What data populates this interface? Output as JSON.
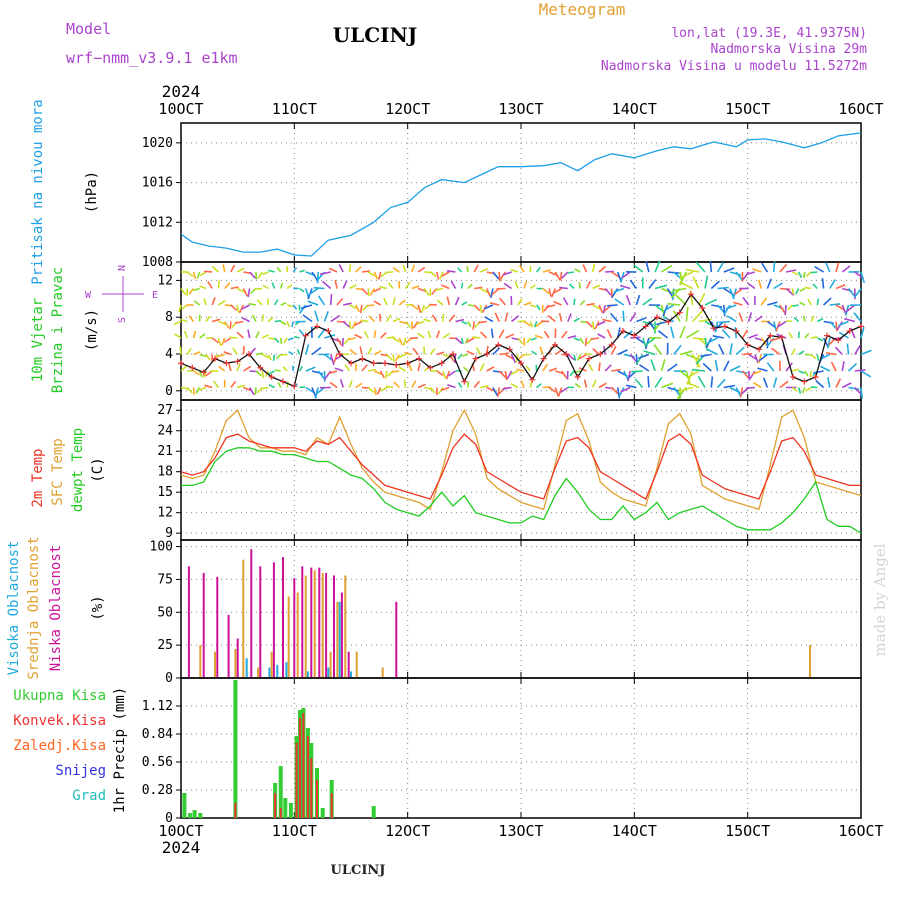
{
  "header": {
    "model_label": "Model",
    "model_name": "wrf−nmm_v3.9.1  e1km",
    "station": "ULCINJ",
    "meteogram": "Meteogram",
    "lonlat": "lon,lat (19.3E, 41.9375N)",
    "elevation": "Nadmorska Visina 29m",
    "model_elevation": "Nadmorska Visina u modelu 11.5272m",
    "year_top": "2024",
    "year_bottom": "2024",
    "footer_station": "ULCINJ",
    "watermark": "made by Angel"
  },
  "colors": {
    "pressure": "#1ea0e6",
    "wind_label": "#22cc22",
    "temp2m": "#ee3322",
    "sfc": "#e0a030",
    "dew": "#22cc22",
    "cloud_high": "#22aadd",
    "cloud_mid": "#e0a030",
    "cloud_low": "#cc1199",
    "rain_total": "#33cc33",
    "rain_conv": "#ee3333",
    "snow": "#3333dd",
    "frozen": "#ff6622",
    "hail": "#22bbbb",
    "compass": "#aa44cc"
  },
  "chart_data": [
    {
      "type": "line",
      "panel": "pressure",
      "ylabel_1": "Pritisak na nivou mora",
      "ylabel_2": "(hPa)",
      "x_ticks": [
        "10OCT",
        "11OCT",
        "12OCT",
        "13OCT",
        "14OCT",
        "15OCT",
        "16OCT"
      ],
      "xlim": [
        0,
        6
      ],
      "ylim": [
        1008,
        1022
      ],
      "y_ticks": [
        1008,
        1012,
        1016,
        1020
      ],
      "grid": true,
      "series": [
        {
          "x": [
            0,
            0.1,
            0.25,
            0.4,
            0.55,
            0.7,
            0.85,
            1.0,
            1.15,
            1.3,
            1.5,
            1.7,
            1.85,
            2.0,
            2.15,
            2.3,
            2.5,
            2.65,
            2.8,
            3.0,
            3.2,
            3.35,
            3.5,
            3.65,
            3.8,
            4.0,
            4.2,
            4.35,
            4.5,
            4.7,
            4.9,
            5.0,
            5.15,
            5.3,
            5.5,
            5.65,
            5.8,
            6.0
          ],
          "y": [
            1010.8,
            1010.0,
            1009.6,
            1009.4,
            1009.0,
            1009.0,
            1009.3,
            1008.7,
            1008.6,
            1010.2,
            1010.7,
            1012.0,
            1013.5,
            1014.0,
            1015.5,
            1016.3,
            1016.0,
            1016.8,
            1017.6,
            1017.6,
            1017.7,
            1018.0,
            1017.2,
            1018.3,
            1018.9,
            1018.5,
            1019.2,
            1019.6,
            1019.4,
            1020.1,
            1019.6,
            1020.3,
            1020.4,
            1020.1,
            1019.5,
            1020.0,
            1020.7,
            1021.0
          ]
        }
      ]
    },
    {
      "type": "scatter",
      "panel": "wind",
      "ylabel_1": "10m Vjetar",
      "ylabel_2": "Brzina i Pravac",
      "ylabel_3": "(m/s)",
      "compass": {
        "n": "N",
        "s": "S",
        "e": "E",
        "w": "W"
      },
      "xlim": [
        0,
        6
      ],
      "ylim": [
        -1,
        14
      ],
      "y_ticks": [
        0,
        4,
        8,
        12
      ],
      "grid": true,
      "series": [
        {
          "name": "speed",
          "x": [
            0,
            0.1,
            0.2,
            0.3,
            0.4,
            0.5,
            0.6,
            0.7,
            0.8,
            0.9,
            1.0,
            1.1,
            1.2,
            1.3,
            1.4,
            1.5,
            1.6,
            1.7,
            1.8,
            1.9,
            2.0,
            2.1,
            2.2,
            2.3,
            2.4,
            2.5,
            2.6,
            2.7,
            2.8,
            2.9,
            3.0,
            3.1,
            3.2,
            3.3,
            3.4,
            3.5,
            3.6,
            3.7,
            3.8,
            3.9,
            4.0,
            4.1,
            4.2,
            4.3,
            4.4,
            4.5,
            4.6,
            4.7,
            4.8,
            4.9,
            5.0,
            5.1,
            5.2,
            5.3,
            5.4,
            5.5,
            5.6,
            5.7,
            5.8,
            5.9,
            6.0
          ],
          "y": [
            3.0,
            2.5,
            2.0,
            3.5,
            3.0,
            3.2,
            4.0,
            2.5,
            1.5,
            1.0,
            0.5,
            6.0,
            7.0,
            6.5,
            4.0,
            3.0,
            3.5,
            3.0,
            3.0,
            2.8,
            3.0,
            3.5,
            2.5,
            3.0,
            4.0,
            1.0,
            3.5,
            4.0,
            5.0,
            4.5,
            3.0,
            1.2,
            3.5,
            5.0,
            4.0,
            1.5,
            3.5,
            4.0,
            5.0,
            6.5,
            6.0,
            7.0,
            8.0,
            7.5,
            8.5,
            10.5,
            9.0,
            6.8,
            7.0,
            6.5,
            5.0,
            4.5,
            6.0,
            5.8,
            1.5,
            1.0,
            1.5,
            6.0,
            5.5,
            6.5,
            7.0
          ]
        }
      ]
    },
    {
      "type": "line",
      "panel": "temperature",
      "ylabel_1": "2m Temp",
      "ylabel_2": "SFC Temp",
      "ylabel_3": "dewpt Temp",
      "ylabel_4": "(C)",
      "xlim": [
        0,
        6
      ],
      "ylim": [
        8,
        28.5
      ],
      "y_ticks": [
        9,
        12,
        15,
        18,
        21,
        24,
        27
      ],
      "grid": true,
      "series": [
        {
          "name": "2m Temp",
          "x": [
            0,
            0.1,
            0.2,
            0.3,
            0.4,
            0.5,
            0.6,
            0.7,
            0.8,
            0.9,
            1.0,
            1.1,
            1.2,
            1.3,
            1.4,
            1.5,
            1.6,
            1.7,
            1.8,
            1.9,
            2.0,
            2.1,
            2.2,
            2.3,
            2.4,
            2.5,
            2.6,
            2.7,
            2.8,
            2.9,
            3.0,
            3.1,
            3.2,
            3.3,
            3.4,
            3.5,
            3.6,
            3.7,
            3.8,
            3.9,
            4.0,
            4.1,
            4.2,
            4.3,
            4.4,
            4.5,
            4.6,
            4.7,
            4.8,
            4.9,
            5.0,
            5.1,
            5.2,
            5.3,
            5.4,
            5.5,
            5.6,
            5.7,
            5.8,
            5.9,
            6.0
          ],
          "y": [
            18.0,
            17.5,
            18.0,
            20.0,
            23.0,
            23.5,
            22.5,
            22.0,
            21.5,
            21.5,
            21.5,
            21.0,
            22.5,
            22.0,
            23.0,
            21.0,
            19.0,
            17.5,
            16.0,
            15.5,
            15.0,
            14.5,
            14.0,
            17.5,
            21.5,
            23.5,
            22.0,
            18.0,
            17.0,
            16.0,
            15.0,
            14.5,
            14.0,
            18.5,
            22.5,
            23.0,
            21.5,
            18.0,
            17.0,
            16.0,
            15.0,
            14.0,
            18.0,
            22.5,
            23.5,
            22.0,
            17.5,
            16.5,
            15.5,
            15.0,
            14.5,
            14.0,
            18.0,
            22.5,
            23.0,
            21.0,
            17.5,
            17.0,
            16.5,
            16.0,
            16.0
          ]
        },
        {
          "name": "SFC Temp",
          "x": [
            0,
            0.1,
            0.2,
            0.3,
            0.4,
            0.5,
            0.6,
            0.7,
            0.8,
            0.9,
            1.0,
            1.1,
            1.2,
            1.3,
            1.4,
            1.5,
            1.6,
            1.7,
            1.8,
            1.9,
            2.0,
            2.1,
            2.2,
            2.3,
            2.4,
            2.5,
            2.6,
            2.7,
            2.8,
            2.9,
            3.0,
            3.1,
            3.2,
            3.3,
            3.4,
            3.5,
            3.6,
            3.7,
            3.8,
            3.9,
            4.0,
            4.1,
            4.2,
            4.3,
            4.4,
            4.5,
            4.6,
            4.7,
            4.8,
            4.9,
            5.0,
            5.1,
            5.2,
            5.3,
            5.4,
            5.5,
            5.6,
            5.7,
            5.8,
            5.9,
            6.0
          ],
          "y": [
            17.5,
            17.0,
            17.5,
            21.0,
            25.5,
            27.0,
            23.0,
            21.5,
            21.5,
            21.0,
            21.0,
            20.5,
            23.0,
            22.0,
            26.0,
            22.0,
            18.5,
            16.5,
            15.0,
            14.5,
            14.0,
            13.5,
            12.5,
            18.0,
            24.0,
            27.0,
            23.5,
            17.0,
            15.5,
            14.5,
            13.5,
            13.0,
            12.5,
            19.0,
            25.5,
            26.5,
            22.5,
            16.5,
            15.0,
            14.0,
            13.5,
            13.0,
            18.5,
            25.0,
            26.5,
            23.5,
            16.0,
            15.0,
            14.0,
            13.5,
            13.0,
            12.5,
            19.0,
            26.0,
            27.0,
            23.0,
            16.5,
            16.0,
            15.5,
            15.0,
            14.5
          ]
        },
        {
          "name": "dewpt Temp",
          "x": [
            0,
            0.1,
            0.2,
            0.3,
            0.4,
            0.5,
            0.6,
            0.7,
            0.8,
            0.9,
            1.0,
            1.1,
            1.2,
            1.3,
            1.4,
            1.5,
            1.6,
            1.7,
            1.8,
            1.9,
            2.0,
            2.1,
            2.2,
            2.3,
            2.4,
            2.5,
            2.6,
            2.7,
            2.8,
            2.9,
            3.0,
            3.1,
            3.2,
            3.3,
            3.4,
            3.5,
            3.6,
            3.7,
            3.8,
            3.9,
            4.0,
            4.1,
            4.2,
            4.3,
            4.4,
            4.5,
            4.6,
            4.7,
            4.8,
            4.9,
            5.0,
            5.1,
            5.2,
            5.3,
            5.4,
            5.5,
            5.6,
            5.7,
            5.8,
            5.9,
            6.0
          ],
          "y": [
            16.0,
            16.0,
            16.5,
            19.5,
            21.0,
            21.5,
            21.5,
            21.0,
            21.0,
            20.5,
            20.5,
            20.0,
            19.5,
            19.5,
            18.5,
            17.5,
            17.0,
            15.5,
            13.5,
            12.5,
            12.0,
            11.5,
            13.0,
            15.0,
            13.0,
            14.5,
            12.0,
            11.5,
            11.0,
            10.5,
            10.5,
            11.5,
            11.0,
            14.5,
            17.0,
            15.0,
            12.5,
            11.0,
            11.0,
            13.0,
            11.0,
            12.0,
            13.5,
            11.0,
            12.0,
            12.5,
            13.0,
            12.0,
            11.0,
            10.0,
            9.5,
            9.5,
            9.5,
            10.5,
            12.0,
            14.0,
            16.5,
            11.0,
            10.0,
            10.0,
            9.0
          ]
        }
      ]
    },
    {
      "type": "bar",
      "panel": "clouds",
      "ylabel_1": "Visoka Oblacnost",
      "ylabel_2": "Srednja Oblacnost",
      "ylabel_3": "Niska Oblacnost",
      "ylabel_4": "(%)",
      "xlim": [
        0,
        6
      ],
      "ylim": [
        0,
        105
      ],
      "y_ticks": [
        0,
        25,
        50,
        75,
        100
      ],
      "grid": true,
      "series": [
        {
          "name": "Niska Oblacnost",
          "x": [
            0.07,
            0.2,
            0.32,
            0.42,
            0.5,
            0.62,
            0.7,
            0.82,
            0.9,
            1.0,
            1.07,
            1.15,
            1.22,
            1.28,
            1.35,
            1.42,
            1.48,
            1.9
          ],
          "y": [
            85,
            80,
            77,
            48,
            30,
            98,
            85,
            88,
            92,
            76,
            85,
            84,
            84,
            80,
            78,
            65,
            20,
            58
          ]
        },
        {
          "name": "Srednja Oblacnost",
          "x": [
            0.17,
            0.3,
            0.48,
            0.55,
            0.68,
            0.8,
            0.95,
            1.03,
            1.1,
            1.18,
            1.25,
            1.32,
            1.38,
            1.45,
            1.55,
            1.78,
            5.55
          ],
          "y": [
            25,
            20,
            22,
            90,
            8,
            20,
            62,
            65,
            78,
            82,
            80,
            20,
            58,
            78,
            20,
            8,
            25
          ]
        },
        {
          "name": "Visoka Oblacnost",
          "x": [
            0.58,
            0.78,
            0.85,
            0.93,
            1.12,
            1.3,
            1.4,
            1.5
          ],
          "y": [
            15,
            8,
            10,
            12,
            5,
            8,
            58,
            5
          ]
        }
      ]
    },
    {
      "type": "bar",
      "panel": "precip",
      "ylabel": "1hr Precip (mm)",
      "legend": [
        "Ukupna Kisa",
        "Konvek.Kisa",
        "Zaledj.Kisa",
        "Snijeg",
        "Grad"
      ],
      "xlim": [
        0,
        6
      ],
      "ylim": [
        0,
        1.4
      ],
      "y_ticks": [
        0,
        0.28,
        0.56,
        0.84,
        1.12
      ],
      "grid": true,
      "series": [
        {
          "name": "Ukupna Kisa",
          "x": [
            0.03,
            0.08,
            0.12,
            0.17,
            0.48,
            0.83,
            0.88,
            0.92,
            0.97,
            1.02,
            1.05,
            1.08,
            1.12,
            1.15,
            1.2,
            1.25,
            1.33,
            1.7
          ],
          "y": [
            0.25,
            0.05,
            0.08,
            0.05,
            1.38,
            0.35,
            0.52,
            0.2,
            0.15,
            0.82,
            1.08,
            1.1,
            0.9,
            0.75,
            0.5,
            0.1,
            0.38,
            0.12
          ]
        },
        {
          "name": "Konvek.Kisa",
          "x": [
            0.48,
            0.83,
            0.88,
            1.02,
            1.05,
            1.08,
            1.12,
            1.15,
            1.2,
            1.33
          ],
          "y": [
            0.15,
            0.25,
            0.1,
            0.75,
            1.0,
            1.05,
            0.82,
            0.6,
            0.38,
            0.25
          ]
        }
      ]
    }
  ]
}
